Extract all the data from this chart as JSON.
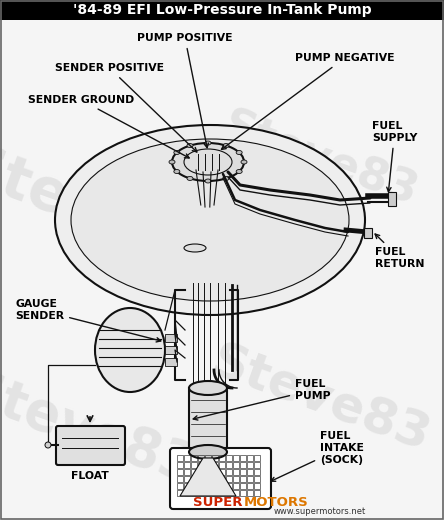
{
  "title": "'84-89 EFI Low-Pressure In-Tank Pump",
  "bg_color": "#f5f5f5",
  "line_color": "#111111",
  "watermark_color": "#cccccc",
  "labels": {
    "pump_positive": "PUMP POSITIVE",
    "pump_negative": "PUMP NEGATIVE",
    "sender_positive": "SENDER POSITIVE",
    "sender_ground": "SENDER GROUND",
    "fuel_supply": "FUEL\nSUPPLY",
    "fuel_return": "FUEL\nRETURN",
    "gauge_sender": "GAUGE\nSENDER",
    "fuel_pump": "FUEL\nPUMP",
    "fuel_intake": "FUEL\nINTAKE\n(SOCK)",
    "float_label": "FLOAT"
  },
  "super_color": "#cc2200",
  "motors_color": "#dd7700",
  "url_color": "#333333"
}
